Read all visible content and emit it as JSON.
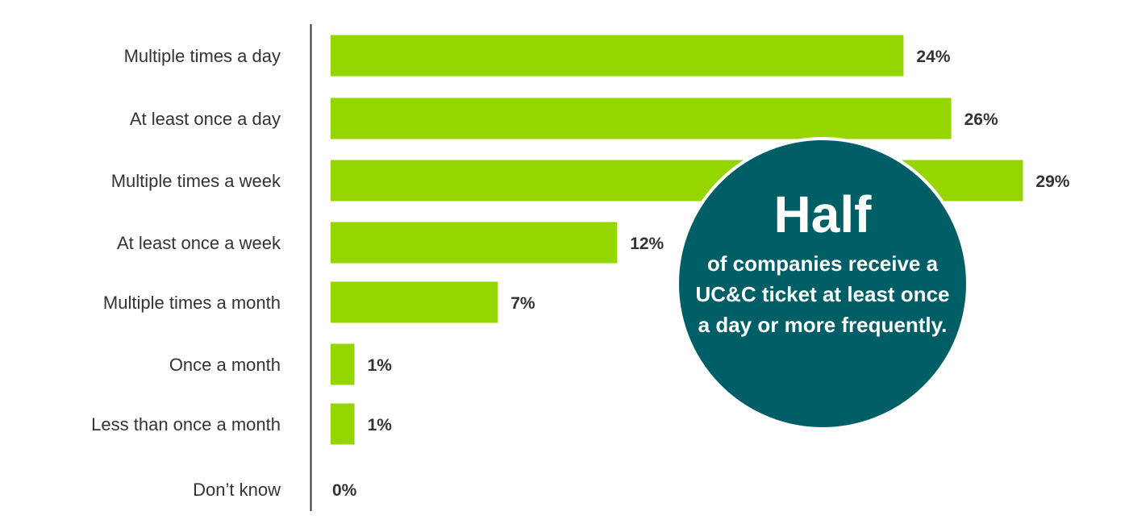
{
  "chart_data": {
    "type": "bar",
    "orientation": "horizontal",
    "categories": [
      "Multiple times a day",
      "At least once a day",
      "Multiple times a week",
      "At least once a week",
      "Multiple times a month",
      "Once a month",
      "Less than once a month",
      "Don’t know"
    ],
    "values": [
      24,
      26,
      29,
      12,
      7,
      1,
      1,
      0
    ],
    "value_labels": [
      "24%",
      "26%",
      "29%",
      "12%",
      "7%",
      "1%",
      "1%",
      "0%"
    ],
    "unit": "%",
    "xlim": [
      0,
      30
    ],
    "grid": false,
    "bar_color": "#96d600",
    "axis_color": "#333333"
  },
  "callout": {
    "headline": "Half",
    "text": "of companies receive a UC&C ticket at least once a day or more frequently.",
    "background_color": "#005f66",
    "text_color": "#ffffff"
  }
}
